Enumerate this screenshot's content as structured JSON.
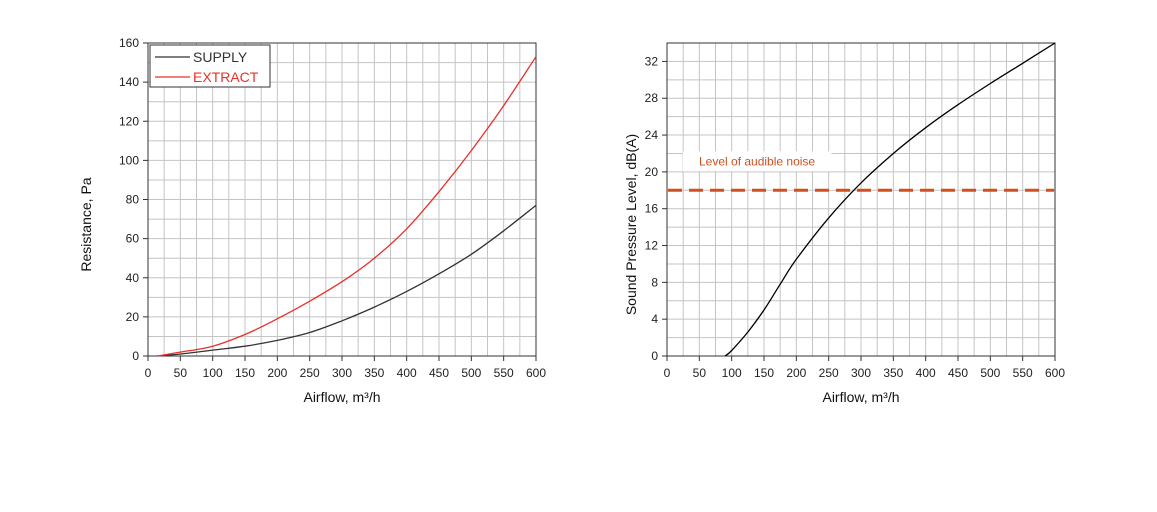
{
  "chart_data": [
    {
      "type": "line",
      "title": "",
      "xlabel": "Airflow, m³/h",
      "ylabel": "Resistance, Pa",
      "xlim": [
        0,
        600
      ],
      "ylim": [
        0,
        160
      ],
      "x_ticks": [
        0,
        50,
        100,
        150,
        200,
        250,
        300,
        350,
        400,
        450,
        500,
        550,
        600
      ],
      "y_ticks": [
        0,
        20,
        40,
        60,
        80,
        100,
        120,
        140,
        160
      ],
      "grid": true,
      "legend_position": "top-left",
      "series": [
        {
          "name": "SUPPLY",
          "color": "#333333",
          "x": [
            15,
            50,
            100,
            150,
            200,
            250,
            300,
            350,
            400,
            450,
            500,
            550,
            600
          ],
          "y": [
            0,
            1,
            3,
            5,
            8,
            12,
            18,
            25,
            33,
            42,
            52,
            64,
            77
          ]
        },
        {
          "name": "EXTRACT",
          "color": "#e8302a",
          "x": [
            15,
            50,
            100,
            150,
            200,
            250,
            300,
            350,
            400,
            450,
            500,
            550,
            600
          ],
          "y": [
            0,
            2,
            5,
            11,
            19,
            28,
            38,
            50,
            65,
            84,
            105,
            128,
            153
          ]
        }
      ]
    },
    {
      "type": "line",
      "title": "",
      "xlabel": "Airflow, m³/h",
      "ylabel": "Sound Pressure Level, dB(A)",
      "xlim": [
        0,
        600
      ],
      "ylim": [
        0,
        34
      ],
      "x_ticks": [
        0,
        50,
        100,
        150,
        200,
        250,
        300,
        350,
        400,
        450,
        500,
        550,
        600
      ],
      "y_ticks": [
        0,
        4,
        8,
        12,
        16,
        20,
        24,
        28,
        32
      ],
      "grid": true,
      "series": [
        {
          "color": "#000000",
          "x": [
            90,
            100,
            125,
            150,
            175,
            200,
            250,
            300,
            350,
            400,
            450,
            500,
            550,
            600
          ],
          "y": [
            0,
            0.6,
            2.6,
            5.0,
            7.8,
            10.5,
            15.0,
            18.8,
            22.0,
            24.8,
            27.3,
            29.6,
            31.8,
            34.0
          ]
        }
      ],
      "annotations": [
        {
          "text": "Level of audible noise",
          "y": 18,
          "color": "#d0501e",
          "style": "dashed"
        }
      ]
    }
  ]
}
